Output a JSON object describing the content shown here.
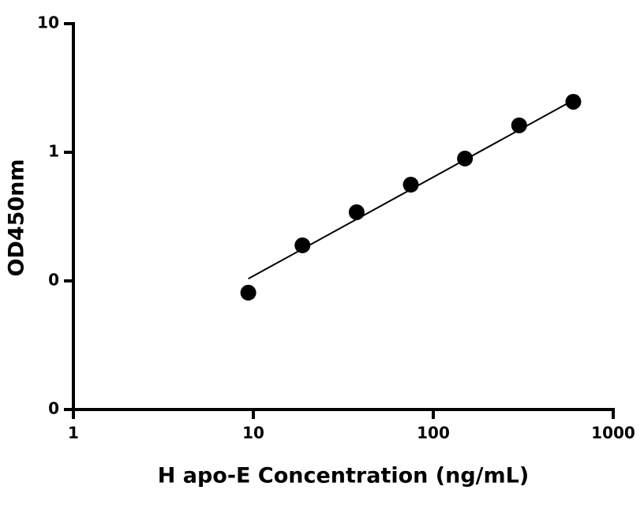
{
  "chart_data": {
    "type": "scatter",
    "x_label": "H apo-E Concentration (ng/mL)",
    "y_label": "OD450nm",
    "xscale": "log",
    "yscale": "log",
    "xlim": [
      1,
      1000
    ],
    "ylim": [
      0.01,
      10
    ],
    "xticks": [
      1,
      10,
      100,
      1000
    ],
    "yticks": [
      {
        "value": 0.01,
        "label": "0"
      },
      {
        "value": 0.1,
        "label": "0"
      },
      1,
      10
    ],
    "points": {
      "color": "#000000",
      "x": [
        9.375,
        18.75,
        37.5,
        75,
        150,
        300,
        600
      ],
      "y": [
        0.081,
        0.189,
        0.342,
        0.56,
        0.894,
        1.62,
        2.47
      ]
    },
    "fit": {
      "color": "#000000",
      "x": [
        9.375,
        600
      ],
      "y": [
        0.104,
        2.54
      ]
    }
  }
}
